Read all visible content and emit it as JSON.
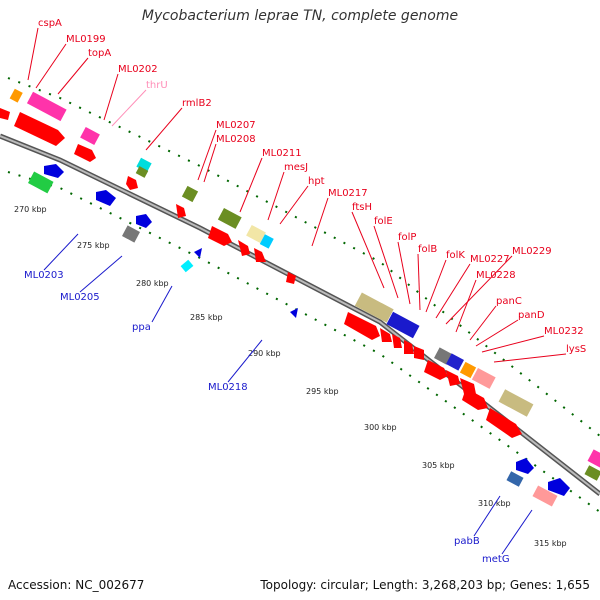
{
  "title": "Mycobacterium leprae TN, complete genome",
  "accession": "Accession: NC_002677",
  "topology": "Topology: circular; Length: 3,268,203 bp; Genes: 1,655",
  "colors": {
    "backbone": "#8c8c8c",
    "forward_label": "#e8001c",
    "reverse_label": "#1a1acc",
    "trna_label": "#ff8fb8",
    "dots": "#006600"
  },
  "ticks": [
    {
      "label": "270 kbp"
    },
    {
      "label": "275 kbp"
    },
    {
      "label": "280 kbp"
    },
    {
      "label": "285 kbp"
    },
    {
      "label": "290 kbp"
    },
    {
      "label": "295 kbp"
    },
    {
      "label": "300 kbp"
    },
    {
      "label": "305 kbp"
    },
    {
      "label": "310 kbp"
    },
    {
      "label": "315 kbp"
    }
  ],
  "forward_labels": [
    {
      "text": "cspA",
      "color": "forward"
    },
    {
      "text": "ML0199",
      "color": "forward"
    },
    {
      "text": "topA",
      "color": "forward"
    },
    {
      "text": "ML0202",
      "color": "forward"
    },
    {
      "text": "thrU",
      "color": "trna"
    },
    {
      "text": "rmlB2",
      "color": "forward"
    },
    {
      "text": "ML0207",
      "color": "forward"
    },
    {
      "text": "ML0208",
      "color": "forward"
    },
    {
      "text": "ML0211",
      "color": "forward"
    },
    {
      "text": "mesJ",
      "color": "forward"
    },
    {
      "text": "hpt",
      "color": "forward"
    },
    {
      "text": "ML0217",
      "color": "forward"
    },
    {
      "text": "ftsH",
      "color": "forward"
    },
    {
      "text": "folE",
      "color": "forward"
    },
    {
      "text": "folP",
      "color": "forward"
    },
    {
      "text": "folB",
      "color": "forward"
    },
    {
      "text": "folK",
      "color": "forward"
    },
    {
      "text": "ML0227",
      "color": "forward"
    },
    {
      "text": "ML0229",
      "color": "forward"
    },
    {
      "text": "ML0228",
      "color": "forward"
    },
    {
      "text": "panC",
      "color": "forward"
    },
    {
      "text": "panD",
      "color": "forward"
    },
    {
      "text": "ML0232",
      "color": "forward"
    },
    {
      "text": "lysS",
      "color": "forward"
    }
  ],
  "reverse_labels": [
    {
      "text": "ML0203"
    },
    {
      "text": "ML0205"
    },
    {
      "text": "ppa"
    },
    {
      "text": "ML0218"
    },
    {
      "text": "pabB"
    },
    {
      "text": "metG"
    }
  ]
}
